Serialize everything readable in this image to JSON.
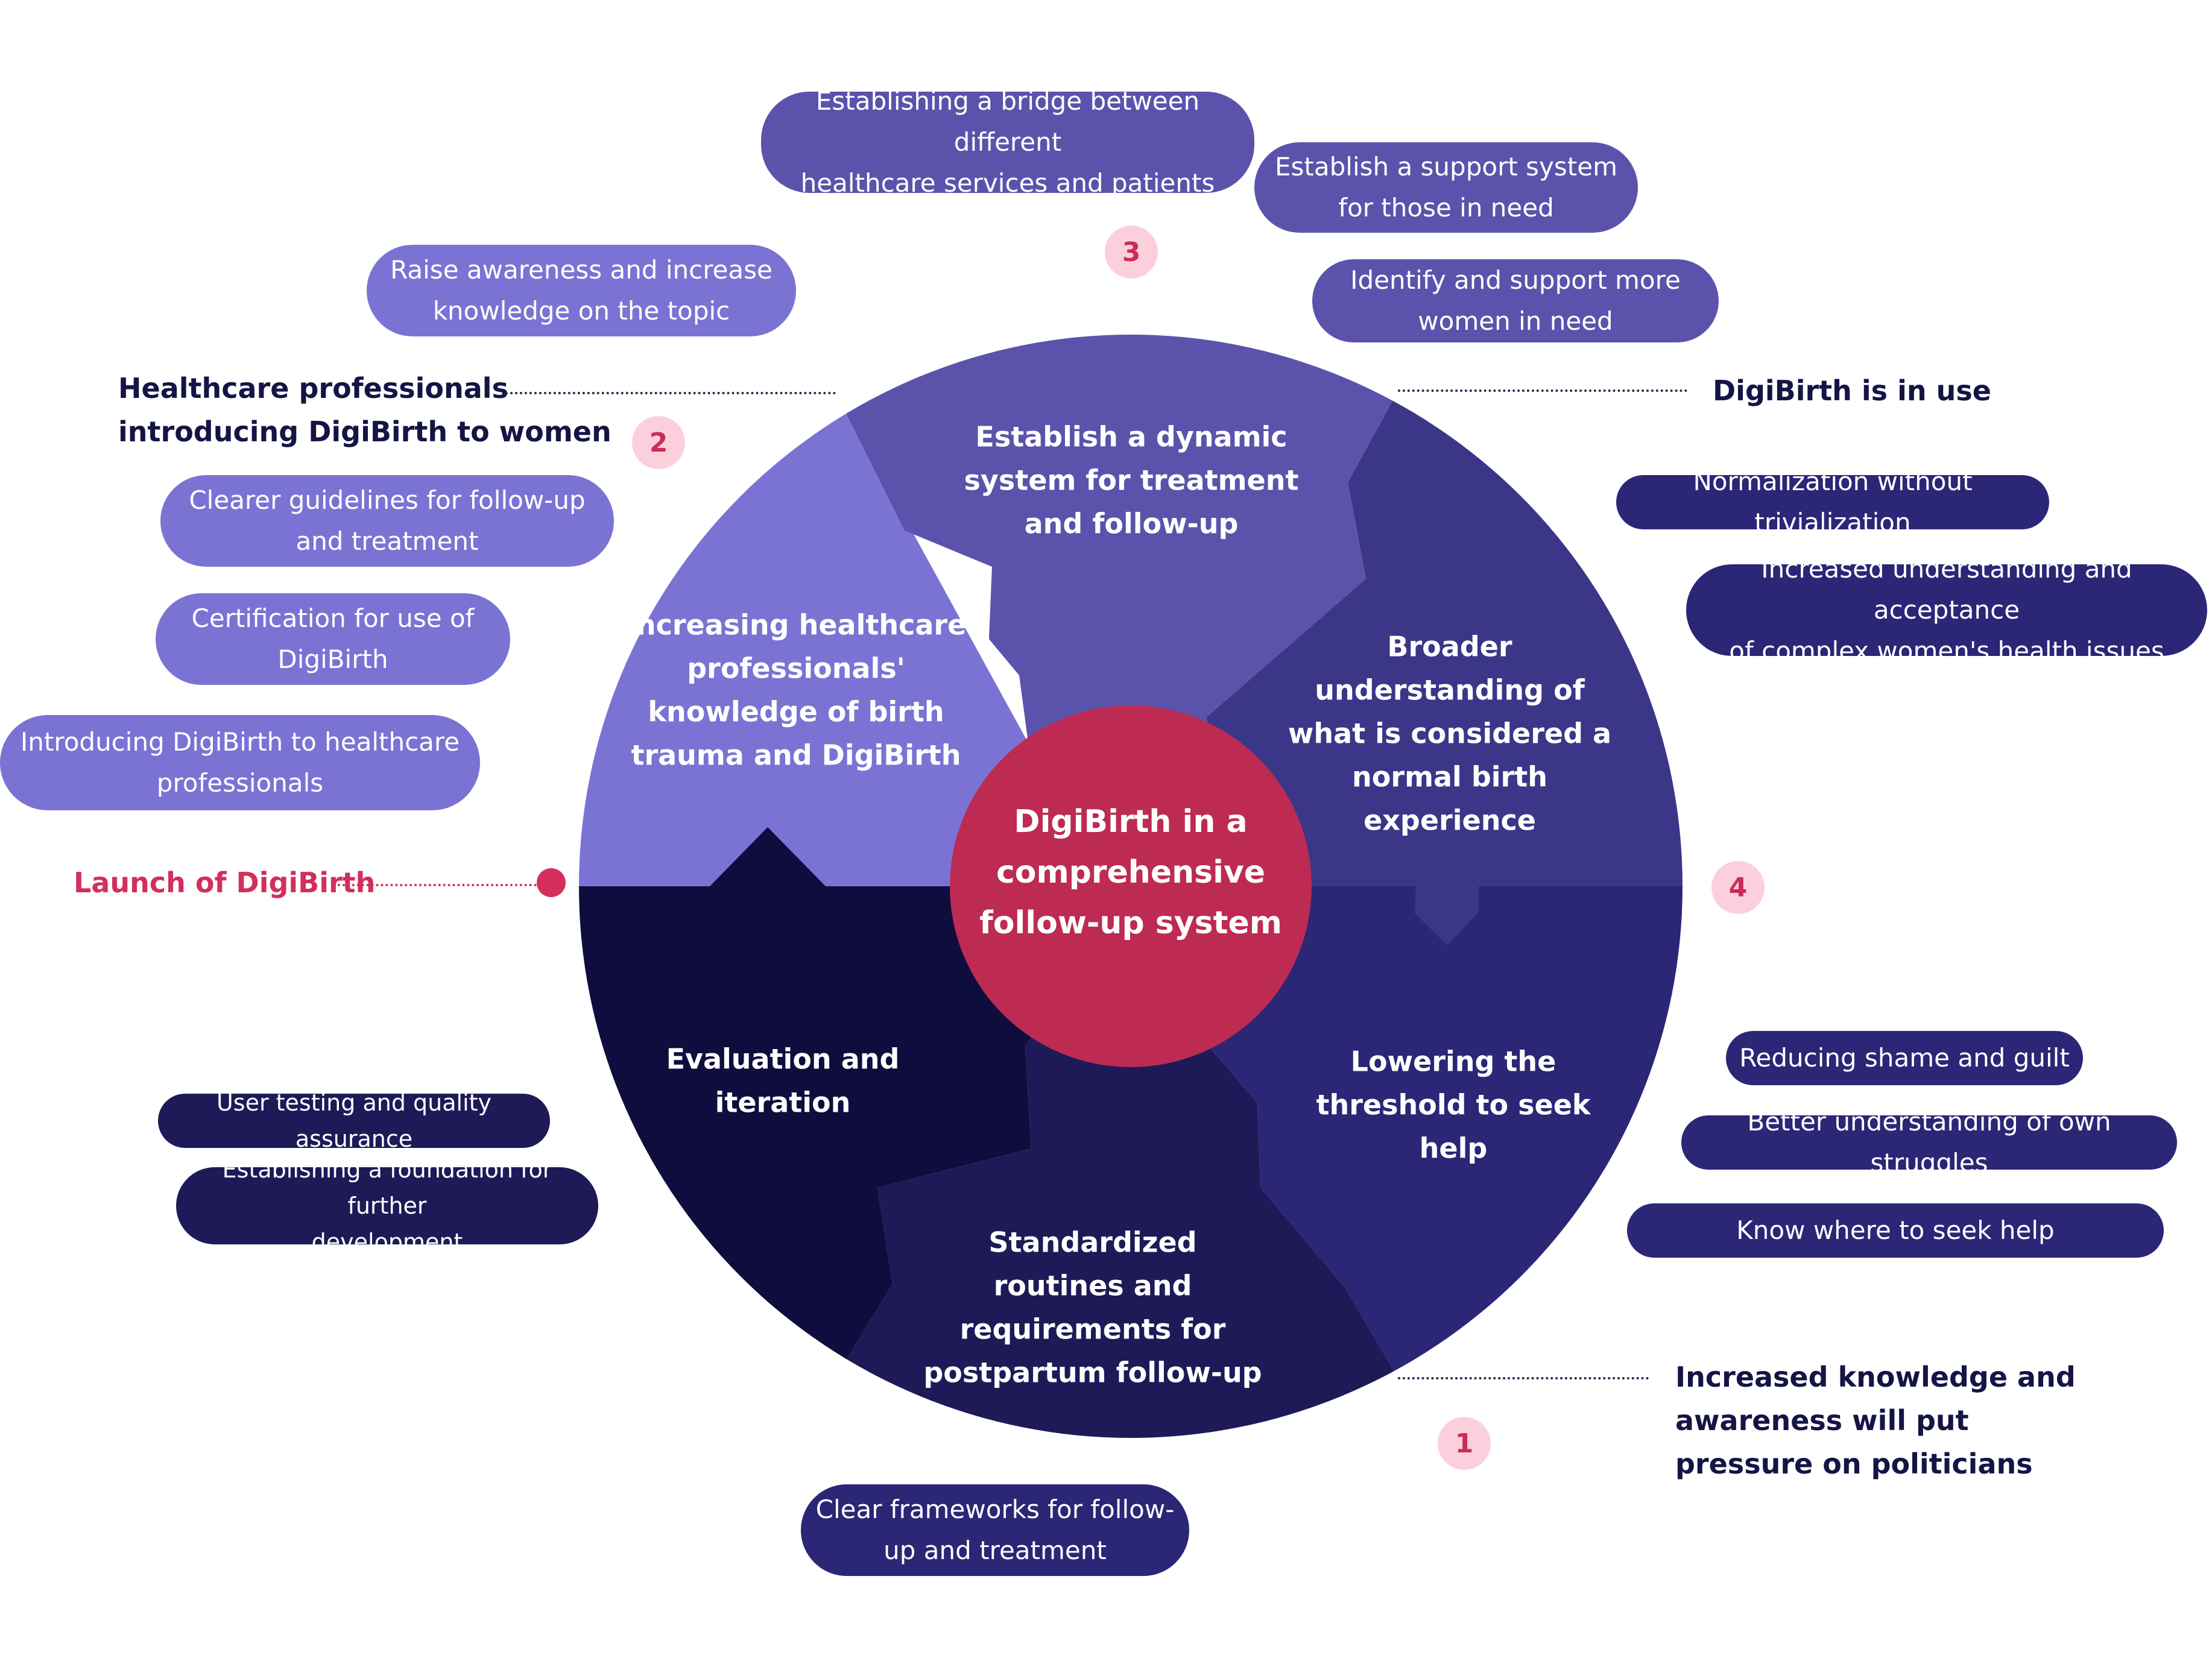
{
  "center": {
    "lines": [
      "DigiBirth in a",
      "comprehensive",
      "follow-up system"
    ]
  },
  "segments": {
    "dynamic": {
      "lines": [
        "Establish a dynamic",
        "system for treatment",
        "and follow-up"
      ]
    },
    "knowledge": {
      "lines": [
        "Increasing healthcare",
        "professionals'",
        "knowledge of birth",
        "trauma and DigiBirth"
      ]
    },
    "broader": {
      "lines": [
        "Broader",
        "understanding of",
        "what is considered a",
        "normal birth",
        "experience"
      ]
    },
    "evaluation": {
      "lines": [
        "Evaluation and",
        "iteration"
      ]
    },
    "threshold": {
      "lines": [
        "Lowering the",
        "threshold to seek",
        "help"
      ]
    },
    "routines": {
      "lines": [
        "Standardized",
        "routines and",
        "requirements for",
        "postpartum follow-up"
      ]
    }
  },
  "pills": {
    "bridge": [
      "Establishing a bridge between different",
      "healthcare services and patients"
    ],
    "support": [
      "Establish a support system",
      "for those in need"
    ],
    "identify": [
      "Identify and support more",
      "women in need"
    ],
    "awareness": [
      "Raise awareness and increase",
      "knowledge on the topic"
    ],
    "guidelines": [
      "Clearer guidelines for follow-up",
      "and treatment"
    ],
    "certification": [
      "Certification for use of",
      "DigiBirth"
    ],
    "introducing": [
      "Introducing DigiBirth to healthcare",
      "professionals"
    ],
    "normalization": [
      "Normalization without trivialization"
    ],
    "understanding": [
      "Increased understanding and acceptance",
      "of complex women's health issues"
    ],
    "shame": [
      "Reducing shame and guilt"
    ],
    "struggles": [
      "Better understanding of own struggles"
    ],
    "seekhelp": [
      "Know where to seek help"
    ],
    "usertesting": [
      "User testing and quality assurance"
    ],
    "foundation": [
      "Establishing a foundation for further",
      "development"
    ],
    "frameworks": [
      "Clear frameworks for follow-",
      "up and treatment"
    ]
  },
  "labels": {
    "healthcare_pros": [
      "Healthcare professionals",
      "introducing DigiBirth to women"
    ],
    "in_use": [
      "DigiBirth is in use"
    ],
    "launch": [
      "Launch of DigiBirth"
    ],
    "politicians": [
      "Increased knowledge and",
      "awareness will put",
      "pressure on politicians"
    ]
  },
  "badges": {
    "one": "1",
    "two": "2",
    "three": "3",
    "four": "4"
  },
  "colors": {
    "knowledge": "#7b73d3",
    "dynamic": "#5b53ab",
    "broader": "#3c3689",
    "threshold": "#2b2676",
    "routines": "#1e1a58",
    "evaluation": "#0f0d3d",
    "center": "#bd2b52",
    "accent_pink": "#d32f5c",
    "badge_bg": "#fbd0dc"
  }
}
